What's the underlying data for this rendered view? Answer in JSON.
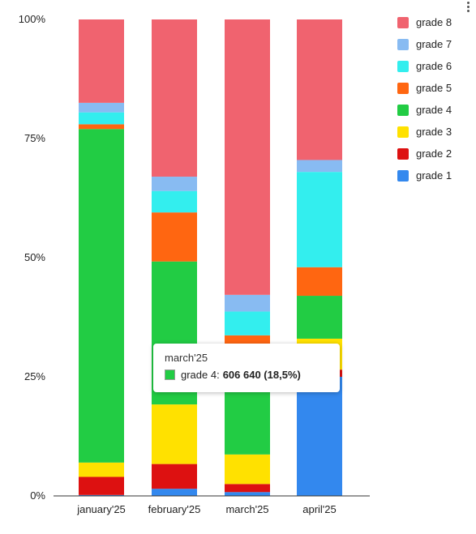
{
  "chart_data": {
    "type": "bar",
    "stacked": "percent",
    "categories": [
      "january'25",
      "february'25",
      "march'25",
      "april'25"
    ],
    "series": [
      {
        "name": "grade 1",
        "color": "#3388ee",
        "values": [
          0.2,
          1.5,
          0.8,
          25.0
        ]
      },
      {
        "name": "grade 2",
        "color": "#dd1111",
        "values": [
          3.8,
          5.2,
          1.7,
          1.5
        ]
      },
      {
        "name": "grade 3",
        "color": "#ffe100",
        "values": [
          3.0,
          12.5,
          6.2,
          6.5
        ]
      },
      {
        "name": "grade 4",
        "color": "#22cc44",
        "values": [
          70.0,
          30.0,
          18.5,
          9.0
        ]
      },
      {
        "name": "grade 5",
        "color": "#ff6611",
        "values": [
          1.0,
          10.3,
          6.5,
          6.0
        ]
      },
      {
        "name": "grade 6",
        "color": "#33eeee",
        "values": [
          2.5,
          4.5,
          5.0,
          20.0
        ]
      },
      {
        "name": "grade 7",
        "color": "#88bbf2",
        "values": [
          2.0,
          3.0,
          3.5,
          2.5
        ]
      },
      {
        "name": "grade 8",
        "color": "#f0636f",
        "values": [
          17.5,
          33.0,
          57.8,
          29.5
        ]
      }
    ],
    "yticks": [
      "0%",
      "25%",
      "50%",
      "75%",
      "100%"
    ],
    "ylim": [
      0,
      100
    ],
    "legend_position": "right",
    "grid": false
  },
  "legend_order": [
    "grade 8",
    "grade 7",
    "grade 6",
    "grade 5",
    "grade 4",
    "grade 3",
    "grade 2",
    "grade 1"
  ],
  "tooltip": {
    "title": "march'25",
    "series_label": "grade 4:",
    "value_text": "606 640 (18,5%)",
    "color": "#22cc44"
  }
}
